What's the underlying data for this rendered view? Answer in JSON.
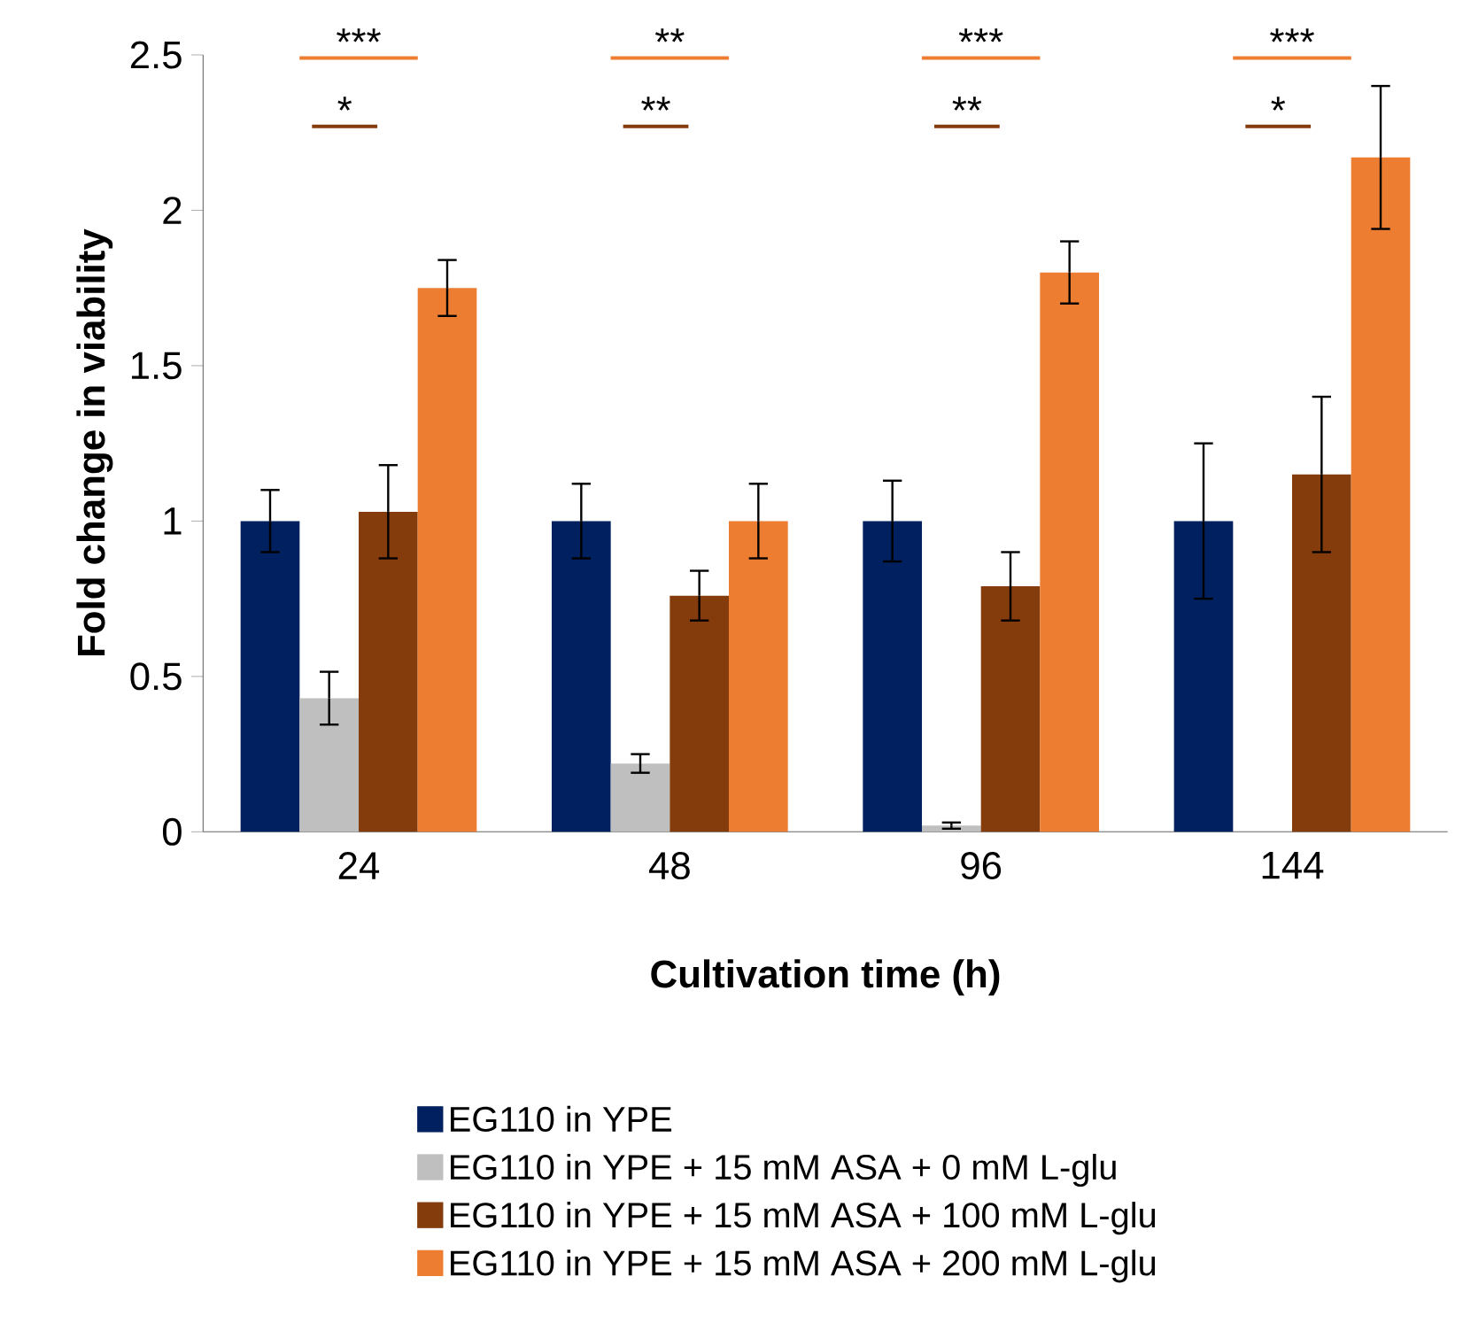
{
  "chart_data": {
    "type": "bar",
    "xlabel": "Cultivation time (h)",
    "ylabel": "Fold change in viability",
    "categories": [
      "24",
      "48",
      "96",
      "144"
    ],
    "series": [
      {
        "name": "EG110 in YPE",
        "color": "#002060",
        "values": [
          1.0,
          1.0,
          1.0,
          1.0
        ],
        "errors": [
          0.1,
          0.12,
          0.13,
          0.25
        ]
      },
      {
        "name": "EG110 in YPE + 15 mM ASA + 0 mM L-glu",
        "color": "#bfbfbf",
        "values": [
          0.43,
          0.22,
          0.02,
          null
        ],
        "errors": [
          0.085,
          0.03,
          0.01,
          null
        ]
      },
      {
        "name": "EG110 in YPE + 15 mM ASA + 100 mM L-glu",
        "color": "#843c0c",
        "values": [
          1.03,
          0.76,
          0.79,
          1.15
        ],
        "errors": [
          0.15,
          0.08,
          0.11,
          0.25
        ]
      },
      {
        "name": "EG110 in YPE + 15 mM ASA + 200 mM L-glu",
        "color": "#ed7d31",
        "values": [
          1.75,
          1.0,
          1.8,
          2.17
        ],
        "errors": [
          0.09,
          0.12,
          0.1,
          0.23
        ]
      }
    ],
    "ylim": [
      0,
      2.5
    ],
    "yticks": [
      0,
      0.5,
      1,
      1.5,
      2,
      2.5
    ],
    "legend": "bottom",
    "annotations": [
      "***",
      "*",
      "**",
      "**",
      "***",
      "**",
      "***",
      "*"
    ]
  }
}
